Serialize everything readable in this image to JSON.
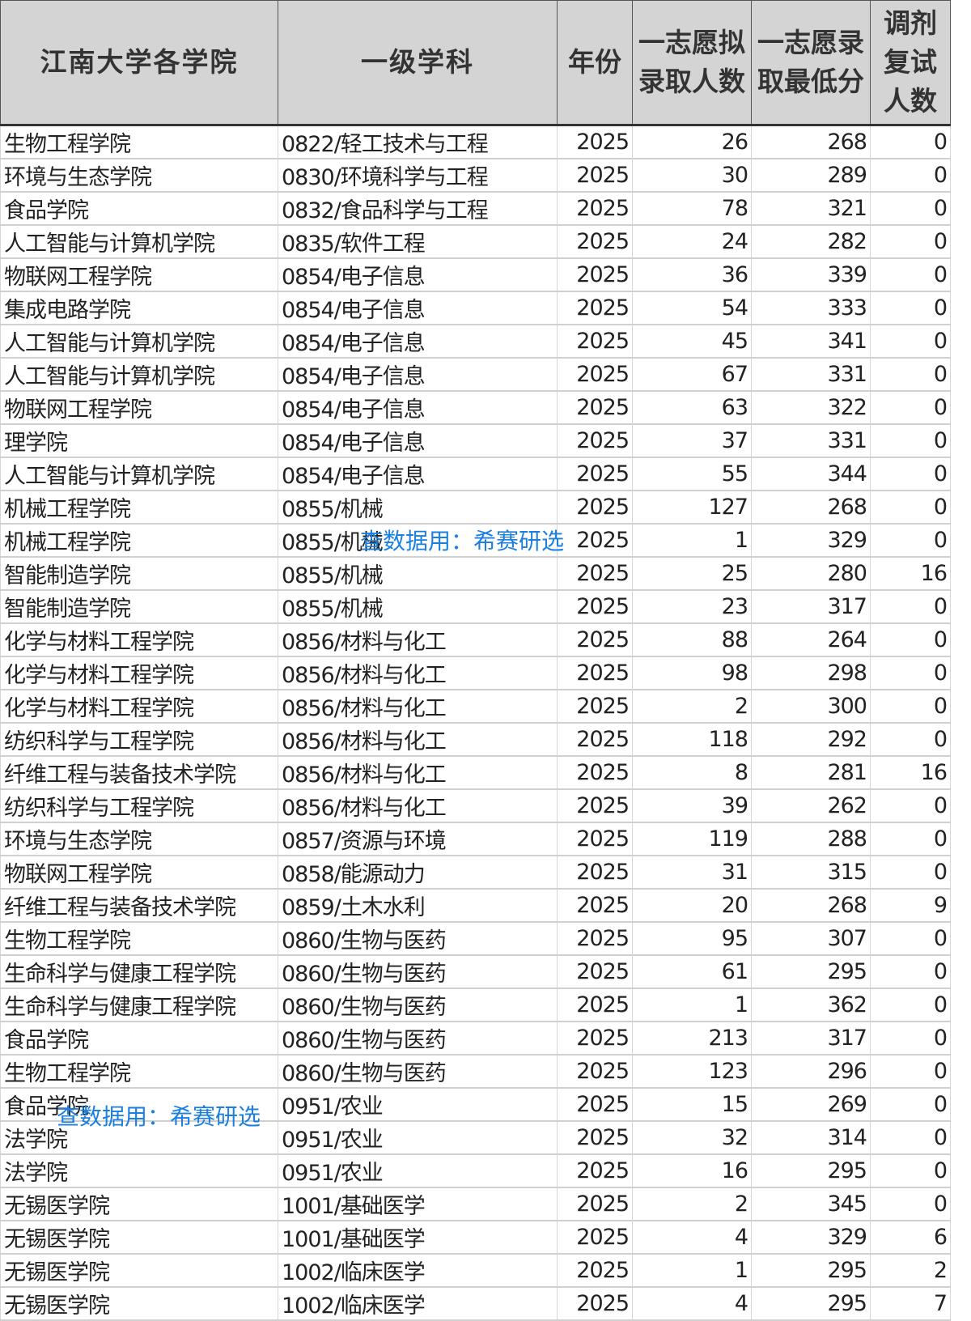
{
  "headers": [
    "江南大学各学院",
    "一级学科",
    "年份",
    "一志愿拟录取人数",
    "一志愿录取最低分",
    "调剂复试人数"
  ],
  "rows": [
    [
      "生物工程学院",
      "0822/轻工技术与工程",
      "2025",
      "26",
      "268",
      "0"
    ],
    [
      "环境与生态学院",
      "0830/环境科学与工程",
      "2025",
      "30",
      "289",
      "0"
    ],
    [
      "食品学院",
      "0832/食品科学与工程",
      "2025",
      "78",
      "321",
      "0"
    ],
    [
      "人工智能与计算机学院",
      "0835/软件工程",
      "2025",
      "24",
      "282",
      "0"
    ],
    [
      "物联网工程学院",
      "0854/电子信息",
      "2025",
      "36",
      "339",
      "0"
    ],
    [
      "集成电路学院",
      "0854/电子信息",
      "2025",
      "54",
      "333",
      "0"
    ],
    [
      "人工智能与计算机学院",
      "0854/电子信息",
      "2025",
      "45",
      "341",
      "0"
    ],
    [
      "人工智能与计算机学院",
      "0854/电子信息",
      "2025",
      "67",
      "331",
      "0"
    ],
    [
      "物联网工程学院",
      "0854/电子信息",
      "2025",
      "63",
      "322",
      "0"
    ],
    [
      "理学院",
      "0854/电子信息",
      "2025",
      "37",
      "331",
      "0"
    ],
    [
      "人工智能与计算机学院",
      "0854/电子信息",
      "2025",
      "55",
      "344",
      "0"
    ],
    [
      "机械工程学院",
      "0855/机械",
      "2025",
      "127",
      "268",
      "0"
    ],
    [
      "机械工程学院",
      "0855/机械",
      "2025",
      "1",
      "329",
      "0"
    ],
    [
      "智能制造学院",
      "0855/机械",
      "2025",
      "25",
      "280",
      "16"
    ],
    [
      "智能制造学院",
      "0855/机械",
      "2025",
      "23",
      "317",
      "0"
    ],
    [
      "化学与材料工程学院",
      "0856/材料与化工",
      "2025",
      "88",
      "264",
      "0"
    ],
    [
      "化学与材料工程学院",
      "0856/材料与化工",
      "2025",
      "98",
      "298",
      "0"
    ],
    [
      "化学与材料工程学院",
      "0856/材料与化工",
      "2025",
      "2",
      "300",
      "0"
    ],
    [
      "纺织科学与工程学院",
      "0856/材料与化工",
      "2025",
      "118",
      "292",
      "0"
    ],
    [
      "纤维工程与装备技术学院",
      "0856/材料与化工",
      "2025",
      "8",
      "281",
      "16"
    ],
    [
      "纺织科学与工程学院",
      "0856/材料与化工",
      "2025",
      "39",
      "262",
      "0"
    ],
    [
      "环境与生态学院",
      "0857/资源与环境",
      "2025",
      "119",
      "288",
      "0"
    ],
    [
      "物联网工程学院",
      "0858/能源动力",
      "2025",
      "31",
      "315",
      "0"
    ],
    [
      "纤维工程与装备技术学院",
      "0859/土木水利",
      "2025",
      "20",
      "268",
      "9"
    ],
    [
      "生物工程学院",
      "0860/生物与医药",
      "2025",
      "95",
      "307",
      "0"
    ],
    [
      "生命科学与健康工程学院",
      "0860/生物与医药",
      "2025",
      "61",
      "295",
      "0"
    ],
    [
      "生命科学与健康工程学院",
      "0860/生物与医药",
      "2025",
      "1",
      "362",
      "0"
    ],
    [
      "食品学院",
      "0860/生物与医药",
      "2025",
      "213",
      "317",
      "0"
    ],
    [
      "生物工程学院",
      "0860/生物与医药",
      "2025",
      "123",
      "296",
      "0"
    ],
    [
      "食品学院",
      "0951/农业",
      "2025",
      "15",
      "269",
      "0"
    ],
    [
      "法学院",
      "0951/农业",
      "2025",
      "32",
      "314",
      "0"
    ],
    [
      "法学院",
      "0951/农业",
      "2025",
      "16",
      "295",
      "0"
    ],
    [
      "无锡医学院",
      "1001/基础医学",
      "2025",
      "2",
      "345",
      "0"
    ],
    [
      "无锡医学院",
      "1001/基础医学",
      "2025",
      "4",
      "329",
      "6"
    ],
    [
      "无锡医学院",
      "1002/临床医学",
      "2025",
      "1",
      "295",
      "2"
    ],
    [
      "无锡医学院",
      "1002/临床医学",
      "2025",
      "4",
      "295",
      "7"
    ]
  ],
  "watermark_text": "查数据用：希赛研选",
  "colors": {
    "header_bg": "#d4d4d4",
    "watermark": "#1a7fe0"
  }
}
